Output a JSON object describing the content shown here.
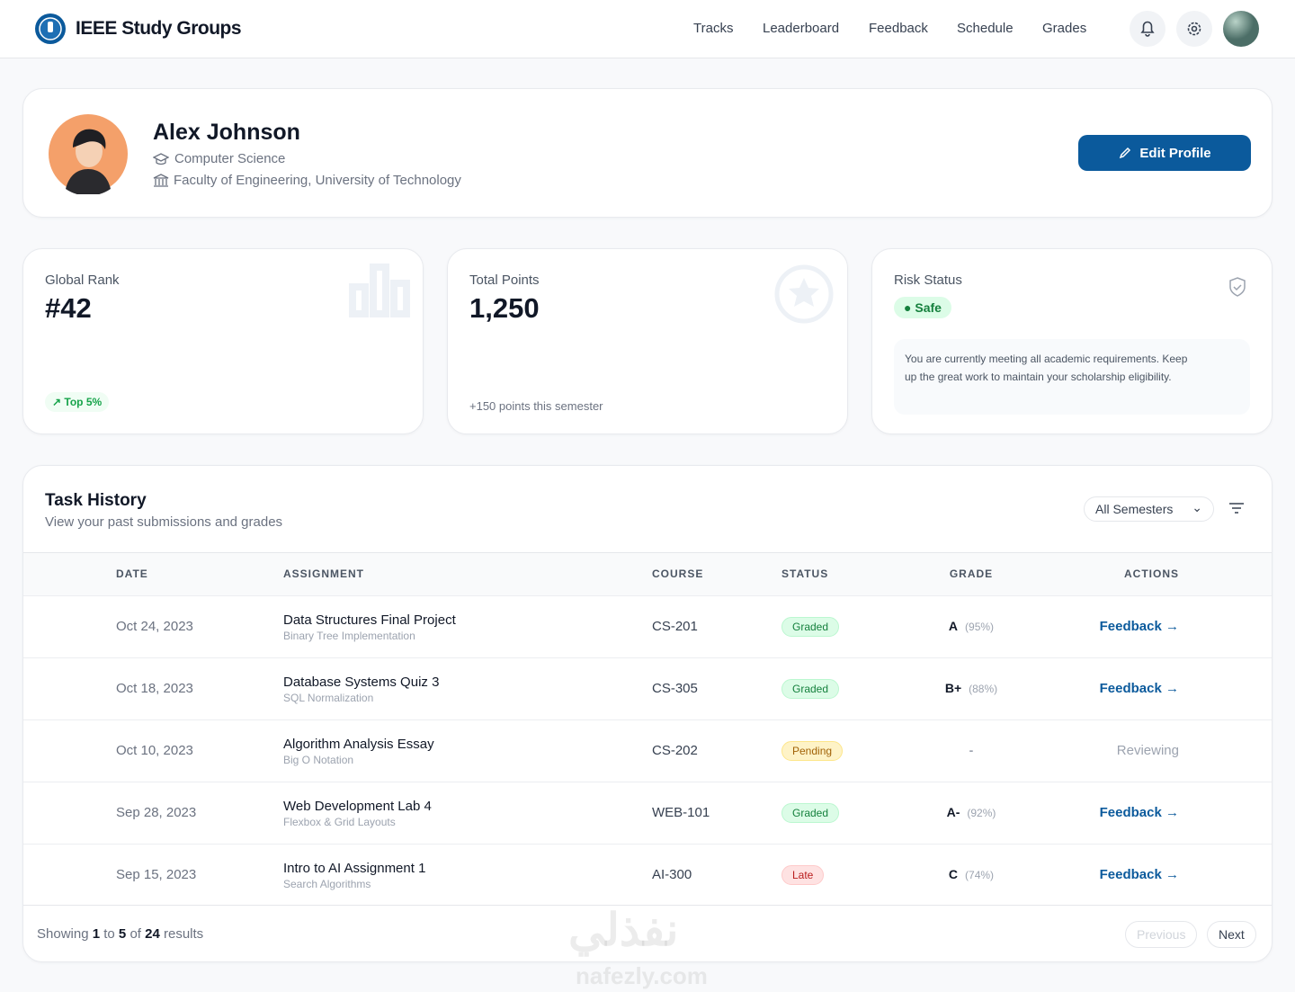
{
  "nav": {
    "brand": "IEEE Study Groups",
    "links": [
      "Tracks",
      "Leaderboard",
      "Feedback",
      "Schedule",
      "Grades"
    ]
  },
  "profile": {
    "name": "Alex Johnson",
    "major": "Computer Science",
    "faculty": "Faculty of Engineering, University of Technology",
    "edit_button": "Edit Profile"
  },
  "stats": {
    "rank": {
      "label": "Global Rank",
      "value": "#42",
      "badge": "Top 5%"
    },
    "points": {
      "label": "Total Points",
      "value": "1,250",
      "note": "+150 points this semester"
    },
    "risk": {
      "label": "Risk Status",
      "badge": "Safe",
      "message": "You are currently meeting all academic requirements. Keep up the great work to maintain your scholarship eligibility."
    }
  },
  "tasks": {
    "title": "Task History",
    "subtitle": "View your past submissions and grades",
    "filter": "All Semesters",
    "columns": [
      "DATE",
      "ASSIGNMENT",
      "COURSE",
      "STATUS",
      "GRADE",
      "ACTIONS"
    ],
    "rows": [
      {
        "date": "Oct 24, 2023",
        "assignment": "Data Structures Final Project",
        "topic": "Binary Tree Implementation",
        "course": "CS-201",
        "status": "Graded",
        "status_color": "green",
        "grade": "A",
        "percent": "(95%)",
        "action": "Feedback",
        "action_color": "blue"
      },
      {
        "date": "Oct 18, 2023",
        "assignment": "Database Systems Quiz 3",
        "topic": "SQL Normalization",
        "course": "CS-305",
        "status": "Graded",
        "status_color": "green",
        "grade": "B+",
        "percent": "(88%)",
        "action": "Feedback",
        "action_color": "blue"
      },
      {
        "date": "Oct 10, 2023",
        "assignment": "Algorithm Analysis Essay",
        "topic": "Big O Notation",
        "course": "CS-202",
        "status": "Pending",
        "status_color": "yellow",
        "grade": "-",
        "action": "Reviewing",
        "action_color": "gray"
      },
      {
        "date": "Sep 28, 2023",
        "assignment": "Web Development Lab 4",
        "topic": "Flexbox & Grid Layouts",
        "course": "WEB-101",
        "status": "Graded",
        "status_color": "green",
        "grade": "A-",
        "percent": "(92%)",
        "action": "Feedback",
        "action_color": "blue"
      },
      {
        "date": "Sep 15, 2023",
        "assignment": "Intro to AI Assignment 1",
        "topic": "Search Algorithms",
        "course": "AI-300",
        "status": "Late",
        "status_color": "red",
        "grade": "C",
        "percent": "(74%)",
        "action": "Feedback",
        "action_color": "blue"
      }
    ]
  },
  "pagination": {
    "prefix": "Showing",
    "from": 1,
    "to_word": "to",
    "to": 5,
    "of_word": "of",
    "total": 24,
    "suffix": "results",
    "previous": "Previous",
    "next": "Next"
  },
  "watermark": {
    "arabic": "نفذلي",
    "latin": "nafezly.com"
  }
}
